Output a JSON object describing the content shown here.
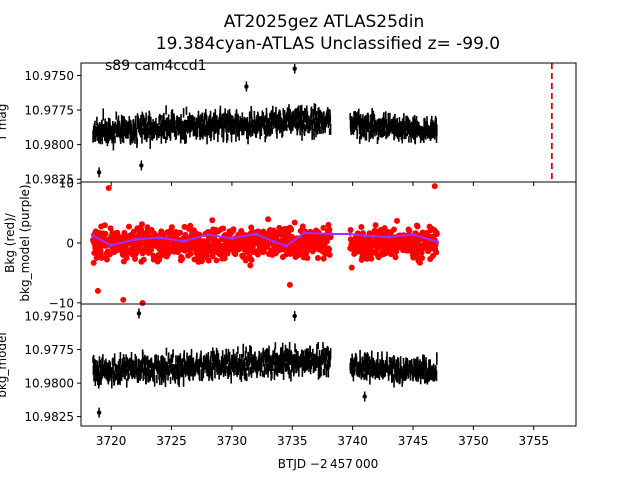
{
  "figure": {
    "title_line1": "AT2025gez  ATLAS25din",
    "title_line2": "19.384cyan-ATLAS Unclassified z= -99.0",
    "annotation": "s89 cam4ccd1",
    "xlabel": "BTJD −2 457 000"
  },
  "colors": {
    "data": "#000000",
    "background_points": "#ff0000",
    "background_model": "#9b30ff",
    "marker_line": "#e00000"
  },
  "chart_data": [
    {
      "type": "scatter",
      "panel": "top",
      "ylabel": "T mag",
      "xlim": [
        3717.5,
        3758.5
      ],
      "ylim": [
        10.9827,
        10.9741
      ],
      "y_inverted": true,
      "xticks": [
        3720,
        3725,
        3730,
        3735,
        3740,
        3745,
        3750,
        3755
      ],
      "yticks": [
        10.975,
        10.9775,
        10.98,
        10.9825
      ],
      "ytick_labels": [
        "10.9750",
        "10.9775",
        "10.9800",
        "10.9825"
      ],
      "vertical_marker_x": 3756.5,
      "segments": [
        {
          "x_start": 3718.5,
          "x_end": 3738.2,
          "y_center_start": 10.979,
          "y_center_end": 10.9782,
          "spread": 0.0015
        },
        {
          "x_start": 3739.8,
          "x_end": 3747.0,
          "y_center_start": 10.9786,
          "y_center_end": 10.979,
          "spread": 0.0012
        }
      ],
      "outliers": [
        {
          "x": 3735.2,
          "y": 10.9745
        },
        {
          "x": 3731.2,
          "y": 10.9758
        },
        {
          "x": 3722.5,
          "y": 10.9815
        },
        {
          "x": 3719.0,
          "y": 10.982
        }
      ]
    },
    {
      "type": "scatter",
      "panel": "middle",
      "ylabel": "Bkg (red)/\nbkg_model (purple)",
      "xlim": [
        3717.5,
        3758.5
      ],
      "ylim": [
        -10.2,
        10.2
      ],
      "yticks": [
        -10,
        0,
        10
      ],
      "ytick_labels": [
        "−10",
        "0",
        "10"
      ],
      "series": [
        {
          "name": "Bkg",
          "color": "red",
          "segments": [
            [
              3718.5,
              3738.2
            ],
            [
              3739.8,
              3747.0
            ]
          ],
          "y_center": 0,
          "spread": 4.5
        },
        {
          "name": "bkg_model",
          "color": "purple",
          "points": [
            [
              3718.5,
              1.2
            ],
            [
              3720.0,
              -0.4
            ],
            [
              3722.0,
              0.6
            ],
            [
              3724.0,
              0.9
            ],
            [
              3726.0,
              0.3
            ],
            [
              3728.0,
              1.4
            ],
            [
              3730.0,
              0.8
            ],
            [
              3732.0,
              1.5
            ],
            [
              3733.5,
              0.2
            ],
            [
              3734.5,
              -0.5
            ],
            [
              3736.0,
              1.7
            ],
            [
              3738.2,
              1.5
            ],
            [
              3739.8,
              1.5
            ],
            [
              3741.0,
              1.2
            ],
            [
              3743.0,
              1.0
            ],
            [
              3745.0,
              1.4
            ],
            [
              3747.0,
              0.2
            ]
          ]
        }
      ],
      "outliers": [
        {
          "x": 3718.9,
          "y": -8.0
        },
        {
          "x": 3721.0,
          "y": -9.5
        },
        {
          "x": 3722.6,
          "y": -10.2
        },
        {
          "x": 3719.8,
          "y": 9.2
        },
        {
          "x": 3734.8,
          "y": -7.0
        },
        {
          "x": 3746.8,
          "y": 9.5
        }
      ]
    },
    {
      "type": "scatter",
      "panel": "bottom",
      "ylabel": "bkg_model",
      "xlim": [
        3717.5,
        3758.5
      ],
      "ylim": [
        10.9832,
        10.9741
      ],
      "y_inverted": true,
      "yticks": [
        10.975,
        10.9775,
        10.98,
        10.9825
      ],
      "ytick_labels": [
        "10.9750",
        "10.9775",
        "10.9800",
        "10.9825"
      ],
      "xticks": [
        3720,
        3725,
        3730,
        3735,
        3740,
        3745,
        3750,
        3755
      ],
      "xtick_labels": [
        "3720",
        "3725",
        "3730",
        "3735",
        "3740",
        "3745",
        "3750",
        "3755"
      ],
      "segments": [
        {
          "x_start": 3718.5,
          "x_end": 3738.2,
          "y_center_start": 10.9792,
          "y_center_end": 10.9782,
          "spread": 0.0016
        },
        {
          "x_start": 3739.8,
          "x_end": 3747.0,
          "y_center_start": 10.9787,
          "y_center_end": 10.9792,
          "spread": 0.0013
        }
      ],
      "outliers": [
        {
          "x": 3735.2,
          "y": 10.975
        },
        {
          "x": 3722.3,
          "y": 10.9748
        },
        {
          "x": 3719.0,
          "y": 10.9822
        },
        {
          "x": 3741.0,
          "y": 10.981
        }
      ]
    }
  ]
}
